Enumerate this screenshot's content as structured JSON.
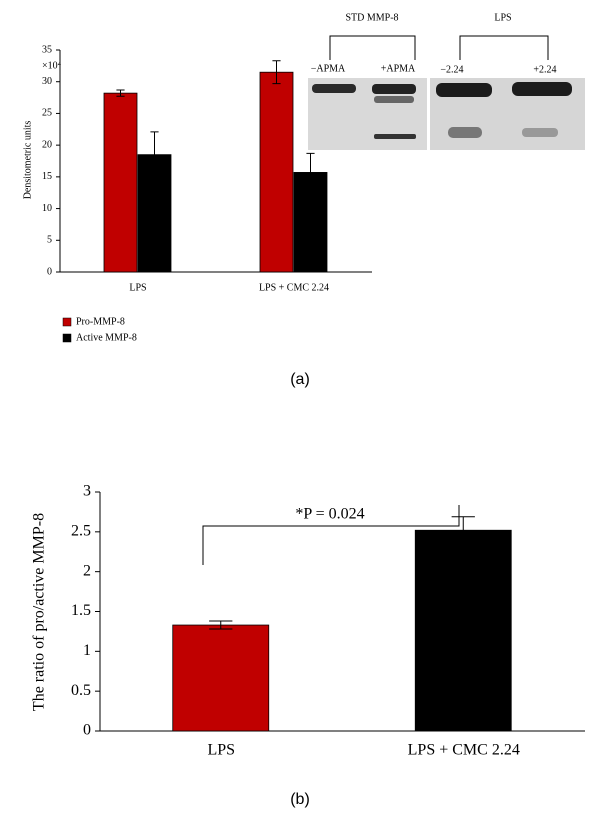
{
  "chart_data": [
    {
      "type": "bar",
      "panel": "(a)",
      "y_multiplier": "×10⁴",
      "ylabel": "Densitometric units",
      "categories": [
        "LPS",
        "LPS + CMC 2.24"
      ],
      "series": [
        {
          "name": "Pro-MMP-8",
          "color": "#c00000",
          "values": [
            28.2,
            31.5
          ],
          "errors": [
            0.5,
            1.8
          ]
        },
        {
          "name": "Active MMP-8",
          "color": "#000000",
          "values": [
            18.5,
            15.7
          ],
          "errors": [
            3.6,
            3.0
          ]
        }
      ],
      "ylim": [
        0,
        35
      ],
      "yticks": [
        0,
        5,
        10,
        15,
        20,
        25,
        30,
        35
      ],
      "legend": "bottom-left",
      "inset_labels": {
        "left_group": "STD MMP-8",
        "left_lanes": [
          "−APMA",
          "+APMA"
        ],
        "right_group": "LPS",
        "right_lanes": [
          "−2.24",
          "+2.24"
        ]
      }
    },
    {
      "type": "bar",
      "panel": "(b)",
      "ylabel": "The ratio of pro/active MMP-8",
      "categories": [
        "LPS",
        "LPS + CMC 2.24"
      ],
      "values": [
        1.33,
        2.52
      ],
      "errors": [
        0.05,
        0.17
      ],
      "colors": [
        "#c00000",
        "#000000"
      ],
      "ylim": [
        0,
        3
      ],
      "yticks": [
        0,
        0.5,
        1,
        1.5,
        2,
        2.5,
        3
      ],
      "annotation": "*P = 0.024"
    }
  ]
}
